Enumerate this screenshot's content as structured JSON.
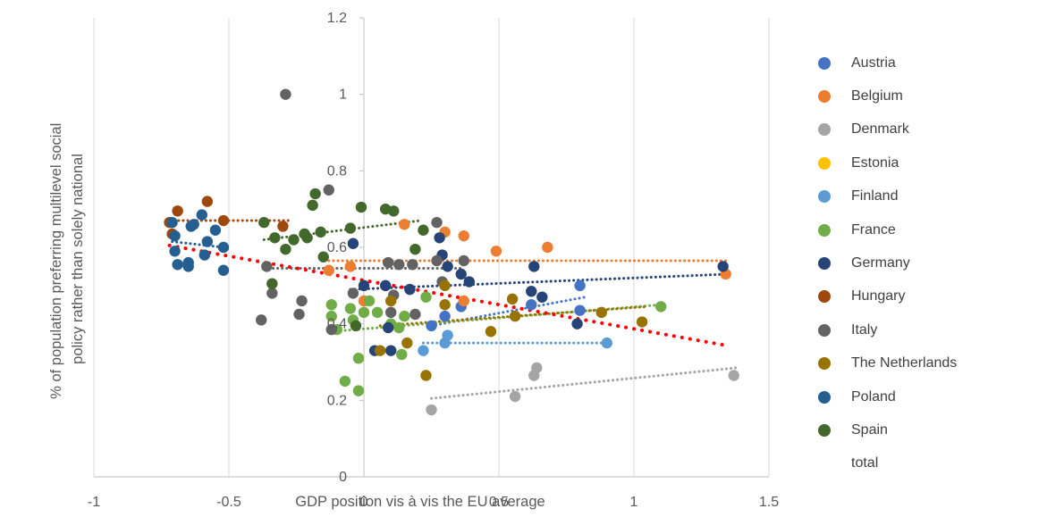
{
  "chart_data": {
    "type": "scatter",
    "xlabel": "GDP position vis à vis the EU average",
    "ylabel": "% of population preferring multilevel social policy rather than solely national",
    "xlim": [
      -1,
      1.5
    ],
    "ylim": [
      0,
      1.2
    ],
    "x_ticks": [
      "-1",
      "-0.5",
      "0",
      "0.5",
      "1",
      "1.5"
    ],
    "y_ticks": [
      "0",
      "0.2",
      "0.4",
      "0.6",
      "0.8",
      "1",
      "1.2"
    ],
    "grid": "vertical",
    "legend_position": "right",
    "series": [
      {
        "name": "Austria",
        "color": "#4472C4",
        "points": [
          [
            0.3,
            0.42
          ],
          [
            0.36,
            0.445
          ],
          [
            0.62,
            0.45
          ],
          [
            0.8,
            0.435
          ],
          [
            0.8,
            0.5
          ],
          [
            0.25,
            0.395
          ]
        ],
        "trend": [
          [
            0.25,
            0.395
          ],
          [
            0.82,
            0.47
          ]
        ]
      },
      {
        "name": "Belgium",
        "color": "#ED7D31",
        "points": [
          [
            -0.13,
            0.54
          ],
          [
            -0.05,
            0.55
          ],
          [
            0.15,
            0.66
          ],
          [
            0.3,
            0.64
          ],
          [
            0.37,
            0.63
          ],
          [
            0.49,
            0.59
          ],
          [
            0.68,
            0.6
          ],
          [
            1.34,
            0.53
          ],
          [
            0.0,
            0.46
          ],
          [
            0.37,
            0.46
          ]
        ],
        "trend": [
          [
            -0.13,
            0.565
          ],
          [
            1.35,
            0.565
          ]
        ]
      },
      {
        "name": "Denmark",
        "color": "#A5A5A5",
        "points": [
          [
            0.25,
            0.175
          ],
          [
            0.56,
            0.21
          ],
          [
            0.63,
            0.265
          ],
          [
            0.64,
            0.285
          ],
          [
            1.37,
            0.265
          ]
        ],
        "trend": [
          [
            0.25,
            0.205
          ],
          [
            1.38,
            0.285
          ]
        ]
      },
      {
        "name": "Estonia",
        "color": "#FFC000",
        "points": [],
        "trend": []
      },
      {
        "name": "Finland",
        "color": "#5B9BD5",
        "points": [
          [
            0.22,
            0.33
          ],
          [
            0.3,
            0.35
          ],
          [
            0.31,
            0.37
          ],
          [
            0.9,
            0.35
          ]
        ],
        "trend": [
          [
            0.22,
            0.35
          ],
          [
            0.9,
            0.35
          ]
        ]
      },
      {
        "name": "France",
        "color": "#70AD47",
        "points": [
          [
            -0.12,
            0.45
          ],
          [
            -0.12,
            0.42
          ],
          [
            -0.1,
            0.385
          ],
          [
            -0.07,
            0.25
          ],
          [
            -0.05,
            0.44
          ],
          [
            -0.04,
            0.41
          ],
          [
            -0.02,
            0.31
          ],
          [
            -0.02,
            0.225
          ],
          [
            0.0,
            0.43
          ],
          [
            0.02,
            0.46
          ],
          [
            0.05,
            0.43
          ],
          [
            0.1,
            0.4
          ],
          [
            0.13,
            0.39
          ],
          [
            0.14,
            0.32
          ],
          [
            0.15,
            0.42
          ],
          [
            0.23,
            0.47
          ],
          [
            1.1,
            0.445
          ]
        ],
        "trend": [
          [
            -0.12,
            0.38
          ],
          [
            1.1,
            0.45
          ]
        ]
      },
      {
        "name": "Germany",
        "color": "#264478",
        "points": [
          [
            -0.04,
            0.61
          ],
          [
            0.0,
            0.5
          ],
          [
            0.08,
            0.5
          ],
          [
            0.17,
            0.49
          ],
          [
            0.28,
            0.625
          ],
          [
            0.29,
            0.58
          ],
          [
            0.31,
            0.55
          ],
          [
            0.36,
            0.53
          ],
          [
            0.39,
            0.51
          ],
          [
            0.62,
            0.485
          ],
          [
            0.63,
            0.55
          ],
          [
            0.66,
            0.47
          ],
          [
            0.79,
            0.4
          ],
          [
            1.33,
            0.55
          ],
          [
            0.04,
            0.33
          ],
          [
            0.1,
            0.33
          ],
          [
            0.09,
            0.39
          ]
        ],
        "trend": [
          [
            -0.05,
            0.49
          ],
          [
            1.35,
            0.53
          ]
        ]
      },
      {
        "name": "Hungary",
        "color": "#9E480E",
        "points": [
          [
            -0.72,
            0.665
          ],
          [
            -0.71,
            0.635
          ],
          [
            -0.69,
            0.695
          ],
          [
            -0.58,
            0.72
          ],
          [
            -0.52,
            0.67
          ],
          [
            -0.3,
            0.655
          ]
        ],
        "trend": [
          [
            -0.72,
            0.67
          ],
          [
            -0.28,
            0.67
          ]
        ]
      },
      {
        "name": "Italy",
        "color": "#636363",
        "points": [
          [
            -0.38,
            0.41
          ],
          [
            -0.36,
            0.55
          ],
          [
            -0.34,
            0.48
          ],
          [
            -0.29,
            1.0
          ],
          [
            -0.24,
            0.425
          ],
          [
            -0.23,
            0.46
          ],
          [
            -0.13,
            0.75
          ],
          [
            -0.12,
            0.385
          ],
          [
            -0.04,
            0.48
          ],
          [
            0.09,
            0.56
          ],
          [
            0.11,
            0.475
          ],
          [
            0.13,
            0.555
          ],
          [
            0.18,
            0.555
          ],
          [
            0.19,
            0.425
          ],
          [
            0.27,
            0.665
          ],
          [
            0.27,
            0.565
          ],
          [
            0.29,
            0.51
          ],
          [
            0.37,
            0.565
          ],
          [
            0.1,
            0.43
          ]
        ],
        "trend": [
          [
            -0.37,
            0.545
          ],
          [
            0.37,
            0.545
          ]
        ]
      },
      {
        "name": "The Netherlands",
        "color": "#997300",
        "points": [
          [
            0.06,
            0.33
          ],
          [
            0.1,
            0.46
          ],
          [
            0.16,
            0.35
          ],
          [
            0.23,
            0.265
          ],
          [
            0.3,
            0.5
          ],
          [
            0.3,
            0.45
          ],
          [
            0.47,
            0.38
          ],
          [
            0.55,
            0.465
          ],
          [
            0.56,
            0.42
          ],
          [
            0.88,
            0.43
          ],
          [
            1.03,
            0.405
          ]
        ],
        "trend": [
          [
            0.06,
            0.395
          ],
          [
            1.05,
            0.445
          ]
        ]
      },
      {
        "name": "Poland",
        "color": "#255E91",
        "points": [
          [
            -0.71,
            0.665
          ],
          [
            -0.7,
            0.63
          ],
          [
            -0.7,
            0.59
          ],
          [
            -0.69,
            0.555
          ],
          [
            -0.65,
            0.56
          ],
          [
            -0.65,
            0.55
          ],
          [
            -0.64,
            0.655
          ],
          [
            -0.63,
            0.66
          ],
          [
            -0.6,
            0.685
          ],
          [
            -0.59,
            0.58
          ],
          [
            -0.58,
            0.615
          ],
          [
            -0.55,
            0.645
          ],
          [
            -0.52,
            0.6
          ],
          [
            -0.52,
            0.54
          ]
        ],
        "trend": [
          [
            -0.71,
            0.615
          ],
          [
            -0.52,
            0.6
          ]
        ]
      },
      {
        "name": "Spain",
        "color": "#43682B",
        "points": [
          [
            -0.37,
            0.665
          ],
          [
            -0.34,
            0.505
          ],
          [
            -0.33,
            0.625
          ],
          [
            -0.29,
            0.595
          ],
          [
            -0.26,
            0.62
          ],
          [
            -0.22,
            0.635
          ],
          [
            -0.21,
            0.625
          ],
          [
            -0.19,
            0.71
          ],
          [
            -0.18,
            0.74
          ],
          [
            -0.16,
            0.64
          ],
          [
            -0.15,
            0.575
          ],
          [
            -0.05,
            0.65
          ],
          [
            -0.01,
            0.705
          ],
          [
            0.08,
            0.7
          ],
          [
            0.11,
            0.695
          ],
          [
            0.19,
            0.595
          ],
          [
            0.22,
            0.645
          ],
          [
            -0.03,
            0.395
          ]
        ],
        "trend": [
          [
            -0.37,
            0.62
          ],
          [
            0.21,
            0.67
          ]
        ]
      },
      {
        "name": "total",
        "color": "#FF0000",
        "points": [],
        "trend": [
          [
            -0.72,
            0.605
          ],
          [
            1.33,
            0.345
          ]
        ]
      }
    ]
  }
}
